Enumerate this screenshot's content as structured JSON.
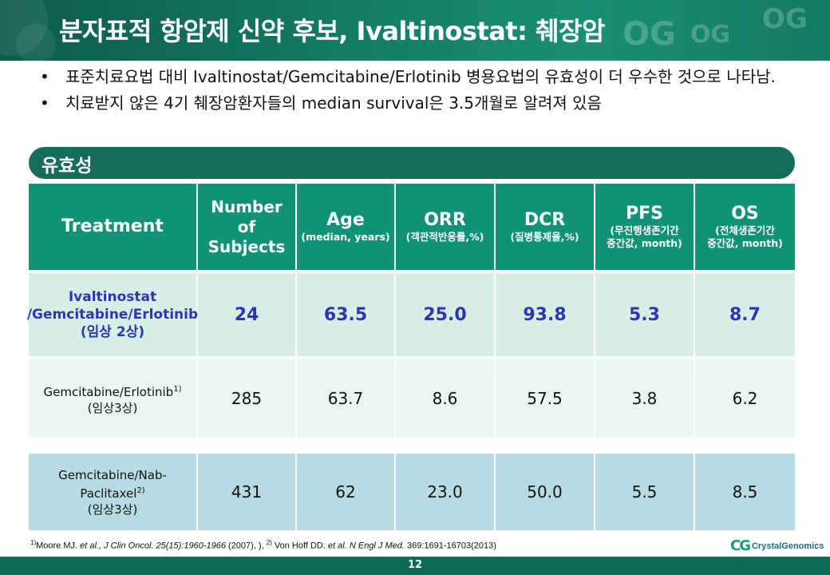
{
  "title": "분자표적 항암제 신약 후보, Ivaltinostat: 췌장암",
  "logo_ghost": [
    "OG",
    "OG",
    "OG"
  ],
  "bullets": [
    "표준치료요법 대비 Ivaltinostat/Gemcitabine/Erlotinib 병용요법의 유효성이 더 우수한 것으로 나타남.",
    "치료받지 않은 4기 췌장암환자들의 median survival은 3.5개월로 알려져 있음"
  ],
  "bullet_mark": "•",
  "section": "유효성",
  "table": {
    "headers": {
      "treatment": "Treatment",
      "subjects": [
        "Number",
        "of",
        "Subjects"
      ],
      "age": {
        "main": "Age",
        "sub": "(median, years)"
      },
      "orr": {
        "main": "ORR",
        "sub": "(객관적반응률,%)"
      },
      "dcr": {
        "main": "DCR",
        "sub": "(질병통제율,%)"
      },
      "pfs": {
        "main": "PFS",
        "sub1": "(무진행생존기간",
        "sub2": "중간값, month)"
      },
      "os": {
        "main": "OS",
        "sub1": "(전체생존기간",
        "sub2": "중간값, month)"
      }
    },
    "rows": [
      {
        "name_lines": [
          "Ivaltinostat",
          "/Gemcitabine/Erlotinib",
          "(임상 2상)"
        ],
        "values": [
          "24",
          "63.5",
          "25.0",
          "93.8",
          "5.3",
          "8.7"
        ]
      },
      {
        "name": "Gemcitabine/Erlotinib",
        "sup": "1)",
        "phase": "(임상3상)",
        "values": [
          "285",
          "63.7",
          "8.6",
          "57.5",
          "3.8",
          "6.2"
        ]
      },
      {
        "name": "Gemcitabine/Nab-Paclitaxel",
        "sup": "2)",
        "phase": "(임상3상)",
        "values": [
          "431",
          "62",
          "23.0",
          "50.0",
          "5.5",
          "8.5"
        ]
      }
    ]
  },
  "footnote": {
    "ref1_mark": "1)",
    "ref1_authors": "Moore MJ. ",
    "ref1_etal_journal": "et al., J Clin Oncol. 25(15):1960-1966",
    "ref1_rest": " (2007), ), ",
    "ref2_mark": "2)",
    "ref2_authors": " Von Hoff DD. ",
    "ref2_etal_journal": "et al. N Engl J Med.",
    "ref2_rest": " 369:1691-16703(2013)"
  },
  "company": {
    "mark": "CG",
    "name": "CrystalGenomics"
  },
  "page_number": "12",
  "colors": {
    "title_bar": "#137a63",
    "header": "#0f9276",
    "highlight_text": "#2a36b6",
    "row1_bg": "#d8efe6",
    "row2_bg": "#eaf6f1",
    "row3_bg": "#b6dbe3"
  }
}
